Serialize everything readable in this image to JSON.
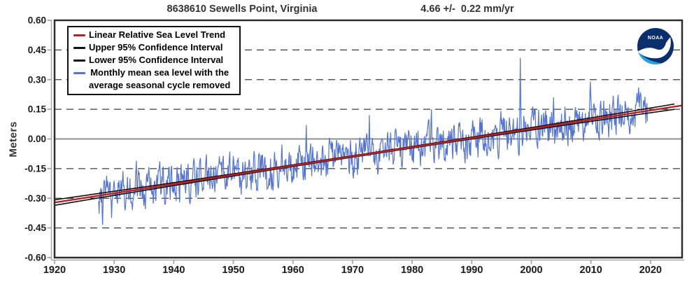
{
  "header": {
    "station_title": "8638610 Sewells Point, Virginia",
    "trend_text": "4.66 +/-  0.22 mm/yr"
  },
  "y_axis": {
    "label": "Meters"
  },
  "legend": {
    "items": [
      {
        "label": "Linear Relative Sea Level Trend",
        "color_key": "trend_red"
      },
      {
        "label": "Upper 95% Confidence Interval",
        "color_key": "ci_black"
      },
      {
        "label": "Lower 95% Confidence Interval",
        "color_key": "ci_black"
      },
      {
        "lines": [
          "Monthly mean sea level with the",
          "average seasonal cycle removed"
        ],
        "color_key": "monthly_blue"
      }
    ]
  },
  "logo": {
    "text": "NOAA",
    "navy": "#0b2f6c",
    "cyan": "#1fa5e0",
    "white": "#ffffff"
  },
  "colors": {
    "monthly_blue": "#5273d8",
    "trend_red": "#bb2025",
    "ci_black": "#111111",
    "zero_line": "#909090",
    "grid": "#3c3c3c",
    "frame": "#2d2d2d",
    "spine_gray": "#a8a8a8",
    "tick_text": "#1a1a1a",
    "title_text": "#333333",
    "background": "#ffffff"
  },
  "chart_data": {
    "type": "line",
    "title": "8638610 Sewells Point, Virginia",
    "trend_label": "4.66 +/- 0.22 mm/yr",
    "xlabel": "",
    "ylabel": "Meters",
    "xlim": [
      1920,
      2025.3
    ],
    "ylim": [
      -0.6,
      0.6
    ],
    "xticks": [
      1920,
      1930,
      1940,
      1950,
      1960,
      1970,
      1980,
      1990,
      2000,
      2010,
      2020
    ],
    "xtick_labels": [
      "1920",
      "1930",
      "1940",
      "1950",
      "1960",
      "1970",
      "1980",
      "1990",
      "2000",
      "2010",
      "2020"
    ],
    "yticks": [
      0.6,
      0.45,
      0.3,
      0.15,
      0.0,
      -0.15,
      -0.3,
      -0.45,
      -0.6
    ],
    "ytick_labels": [
      "0.60",
      "0.45",
      "0.30",
      "0.15",
      "0.00",
      "-0.15",
      "-0.30",
      "-0.45",
      "-0.60"
    ],
    "grid": "horizontal-dashed",
    "legend_position": "top-left",
    "trend": {
      "slope_mm_per_yr": 4.66,
      "uncertainty_mm_per_yr": 0.22,
      "slope_m_per_yr": 0.00466,
      "zero_crossing_year": 1989,
      "start": {
        "year": 1920,
        "value": -0.322
      },
      "end": {
        "year": 2025.3,
        "value": 0.169
      }
    },
    "confidence_interval": {
      "half_width_at_ends_m": 0.014,
      "half_width_at_center_m": 0.0035,
      "center_year": 1972.6,
      "half_span_years": 52.7
    },
    "monthly_series": {
      "name": "Monthly mean sea level with the average seasonal cycle removed",
      "start_year": 1927.4,
      "end_year": 2019.5,
      "interval_years": 0.0833333,
      "noise": {
        "ar1": 0.5,
        "amplitude": 0.082,
        "seed": 19274
      },
      "notable_extremes": [
        {
          "year": 1928.1,
          "value": -0.435
        },
        {
          "year": 1929.6,
          "value": -0.4
        },
        {
          "year": 1933.7,
          "value": -0.11
        },
        {
          "year": 1962.2,
          "value": 0.07
        },
        {
          "year": 1972.8,
          "value": 0.12
        },
        {
          "year": 1983.2,
          "value": 0.15
        },
        {
          "year": 1998.15,
          "value": 0.41
        },
        {
          "year": 2003.7,
          "value": 0.21
        },
        {
          "year": 2009.9,
          "value": 0.29
        },
        {
          "year": 2018.0,
          "value": 0.26
        }
      ]
    }
  }
}
